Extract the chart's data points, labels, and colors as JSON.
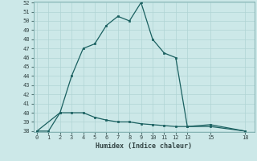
{
  "xlabel": "Humidex (Indice chaleur)",
  "background_color": "#cce8e8",
  "grid_color": "#b0d4d4",
  "line_color": "#1a6060",
  "ylim": [
    38,
    52
  ],
  "yticks": [
    38,
    39,
    40,
    41,
    42,
    43,
    44,
    45,
    46,
    47,
    48,
    49,
    50,
    51,
    52
  ],
  "xticks": [
    0,
    1,
    2,
    3,
    4,
    5,
    6,
    7,
    8,
    9,
    10,
    11,
    12,
    13,
    15,
    18
  ],
  "xlim": [
    -0.3,
    18.8
  ],
  "line1_x": [
    0,
    1,
    2,
    3,
    4,
    5,
    6,
    7,
    8,
    9,
    10,
    11,
    12,
    13,
    15,
    18
  ],
  "line1_y": [
    38.0,
    38.0,
    40.0,
    40.0,
    40.0,
    39.5,
    39.2,
    39.0,
    39.0,
    38.8,
    38.7,
    38.6,
    38.5,
    38.5,
    38.7,
    38.0
  ],
  "line2_x": [
    0,
    2,
    3,
    4,
    5,
    6,
    7,
    8,
    9,
    10,
    11,
    12,
    13,
    15,
    18
  ],
  "line2_y": [
    38.0,
    40.0,
    44.0,
    47.0,
    47.5,
    49.5,
    50.5,
    50.0,
    52.0,
    48.0,
    46.5,
    46.0,
    38.5,
    38.5,
    38.0
  ]
}
